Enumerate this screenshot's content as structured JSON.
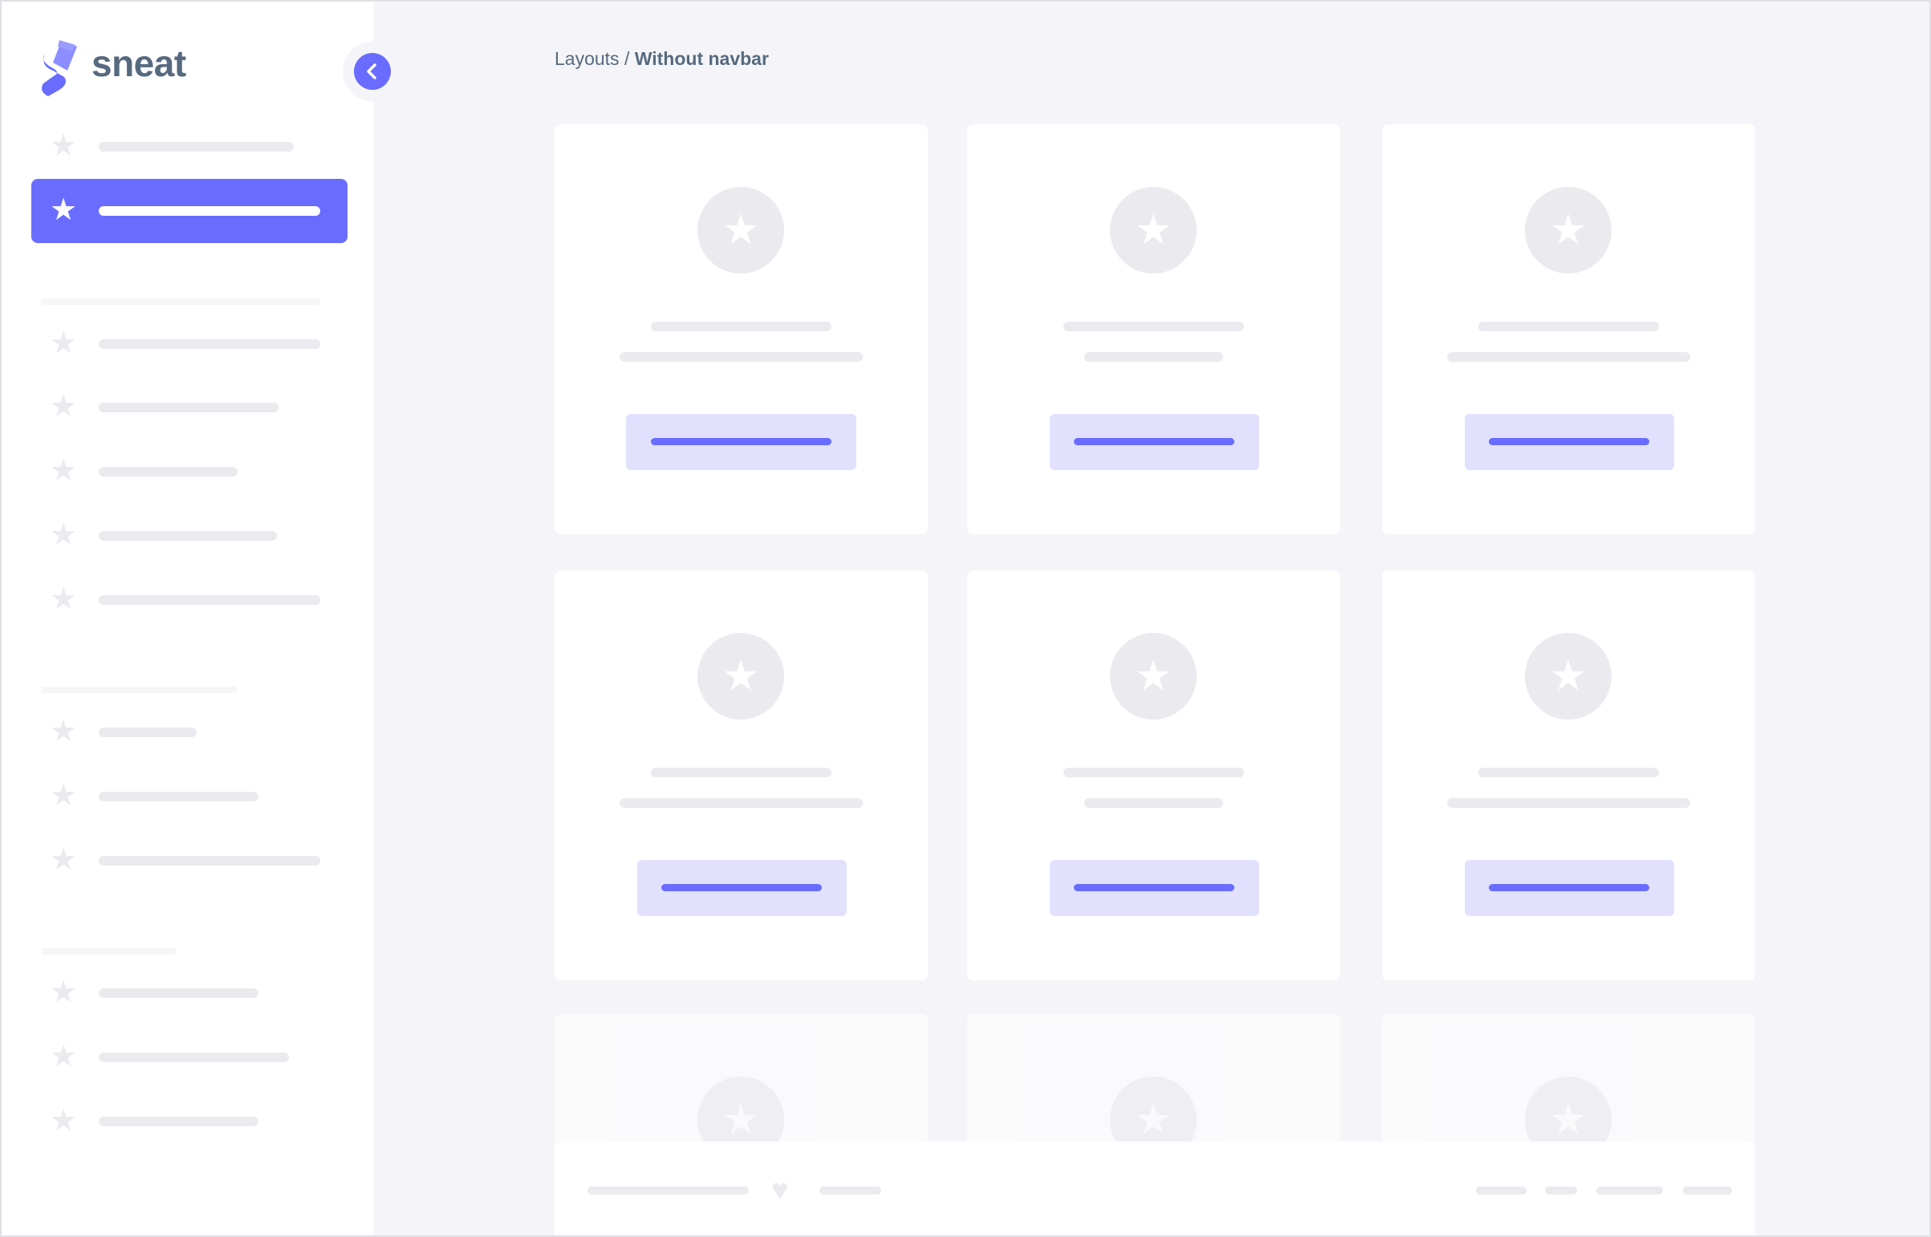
{
  "app": {
    "logo_text": "sneat"
  },
  "breadcrumb": {
    "parent": "Layouts",
    "separator": " / ",
    "current": "Without navbar"
  },
  "colors": {
    "primary": "#696cff",
    "primary_light": "#e1e1fd",
    "placeholder": "#ebebef",
    "background": "#f5f5f9",
    "heading": "#566a7f"
  },
  "icons": {
    "menu_item": "star-icon",
    "toggle": "chevron-left-icon",
    "footer": "heart-icon"
  }
}
